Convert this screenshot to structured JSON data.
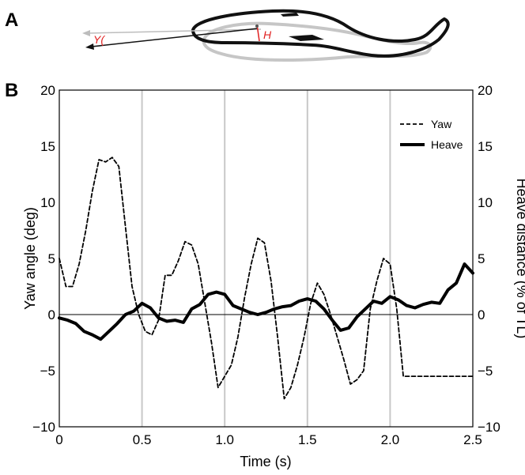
{
  "panel_a": {
    "label": "A",
    "yaw_symbol": "Y(",
    "heave_symbol": "H",
    "annotation_color": "#e02020"
  },
  "panel_b": {
    "label": "B"
  },
  "chart_data": {
    "type": "line",
    "title": "",
    "xlabel": "Time (s)",
    "ylabel": "Yaw angle (deg)",
    "y2label": "Heave distance (% of TL)",
    "xlim": [
      0,
      2.5
    ],
    "ylim": [
      -10,
      20
    ],
    "y2lim": [
      -10,
      20
    ],
    "x_ticks": [
      "0",
      "0.5",
      "1.0",
      "1.5",
      "2.0",
      "2.5"
    ],
    "y_ticks": [
      "−10",
      "−5",
      "0",
      "5",
      "10",
      "15",
      "20"
    ],
    "y2_ticks": [
      "−10",
      "−5",
      "0",
      "5",
      "10",
      "15",
      "20"
    ],
    "vertical_gridlines_at": [
      0.5,
      1.0,
      1.5,
      2.0
    ],
    "zero_line": true,
    "legend_position": "top-right",
    "series": [
      {
        "name": "Yaw",
        "axis": "left",
        "style": "dashed",
        "color": "#000000",
        "x": [
          0,
          0.04,
          0.08,
          0.12,
          0.16,
          0.2,
          0.24,
          0.28,
          0.32,
          0.36,
          0.4,
          0.44,
          0.48,
          0.52,
          0.56,
          0.6,
          0.64,
          0.68,
          0.72,
          0.76,
          0.8,
          0.84,
          0.88,
          0.92,
          0.96,
          1.0,
          1.04,
          1.08,
          1.12,
          1.16,
          1.2,
          1.24,
          1.28,
          1.32,
          1.36,
          1.4,
          1.44,
          1.48,
          1.52,
          1.56,
          1.6,
          1.64,
          1.68,
          1.72,
          1.76,
          1.8,
          1.84,
          1.88,
          1.92,
          1.96,
          2.0,
          2.04,
          2.08,
          2.12,
          2.16,
          2.2,
          2.24,
          2.28,
          2.32,
          2.36,
          2.4,
          2.44,
          2.48,
          2.5
        ],
        "values": [
          5.0,
          2.5,
          2.5,
          4.5,
          7.5,
          11.0,
          13.8,
          13.6,
          14.0,
          13.2,
          7.8,
          2.5,
          0.0,
          -1.5,
          -1.8,
          -0.5,
          3.5,
          3.5,
          4.8,
          6.5,
          6.2,
          4.5,
          1.0,
          -2.5,
          -6.5,
          -5.5,
          -4.5,
          -2.0,
          1.5,
          4.5,
          6.8,
          6.4,
          3.0,
          -2.0,
          -7.5,
          -6.5,
          -4.5,
          -2.0,
          1.0,
          2.8,
          1.8,
          0.0,
          -2.0,
          -4.0,
          -6.2,
          -5.8,
          -5.0,
          0.5,
          3.0,
          5.0,
          4.5,
          0.5,
          -5.5,
          -5.5,
          -5.5,
          -5.5,
          -5.5,
          -5.5,
          -5.5,
          -5.5,
          -5.5,
          -5.5,
          -5.5,
          -5.5
        ]
      },
      {
        "name": "Heave",
        "axis": "right",
        "style": "solid",
        "color": "#000000",
        "x": [
          0,
          0.05,
          0.1,
          0.15,
          0.2,
          0.25,
          0.3,
          0.35,
          0.4,
          0.45,
          0.5,
          0.55,
          0.6,
          0.65,
          0.7,
          0.75,
          0.8,
          0.85,
          0.9,
          0.95,
          1.0,
          1.05,
          1.1,
          1.15,
          1.2,
          1.25,
          1.3,
          1.35,
          1.4,
          1.45,
          1.5,
          1.55,
          1.6,
          1.65,
          1.7,
          1.75,
          1.8,
          1.85,
          1.9,
          1.95,
          2.0,
          2.05,
          2.1,
          2.15,
          2.2,
          2.25,
          2.3,
          2.35,
          2.4,
          2.45,
          2.5
        ],
        "values": [
          -0.3,
          -0.5,
          -0.8,
          -1.5,
          -1.8,
          -2.2,
          -1.5,
          -0.8,
          0.0,
          0.3,
          1.0,
          0.6,
          -0.3,
          -0.6,
          -0.5,
          -0.7,
          0.5,
          0.9,
          1.8,
          2.0,
          1.8,
          0.8,
          0.5,
          0.2,
          0.0,
          0.2,
          0.5,
          0.7,
          0.8,
          1.2,
          1.4,
          1.2,
          0.5,
          -0.5,
          -1.4,
          -1.2,
          -0.2,
          0.5,
          1.2,
          1.0,
          1.6,
          1.3,
          0.8,
          0.6,
          0.9,
          1.1,
          1.0,
          2.2,
          2.8,
          4.5,
          3.7
        ]
      }
    ]
  }
}
